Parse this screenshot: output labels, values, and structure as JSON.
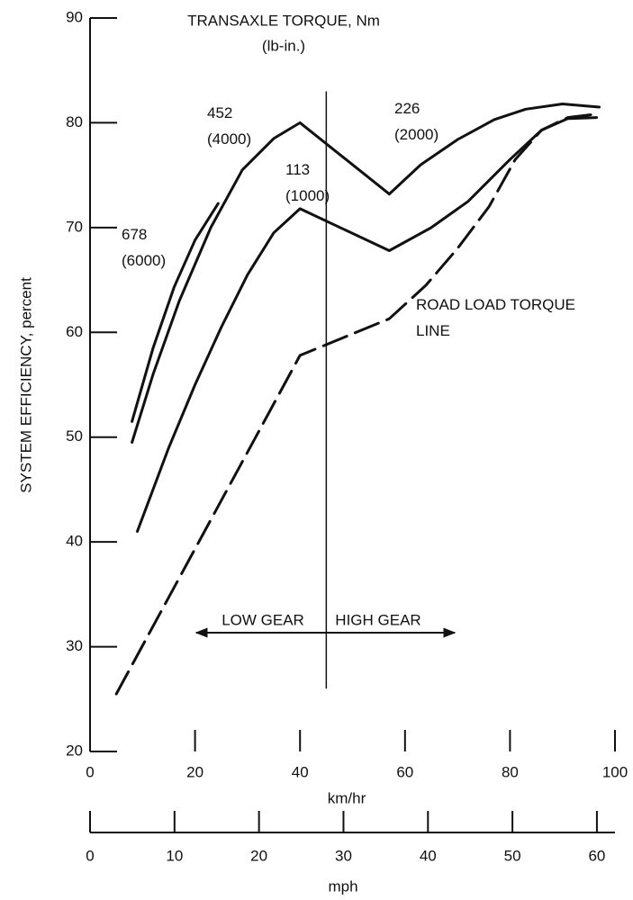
{
  "chart_data": {
    "type": "line",
    "title": "TRANSAXLE TORQUE, Nm",
    "subtitle": "(lb-in.)",
    "ylabel": "SYSTEM EFFICIENCY, percent",
    "xlabel": "km/hr",
    "x2label": "mph",
    "xlim": [
      0,
      100
    ],
    "xticks": [
      0,
      20,
      40,
      60,
      80,
      100
    ],
    "x2lim": [
      0,
      62.14
    ],
    "x2ticks": [
      0,
      10,
      20,
      30,
      40,
      50,
      60
    ],
    "ylim": [
      20,
      90
    ],
    "yticks": [
      20,
      30,
      40,
      50,
      60,
      70,
      80,
      90
    ],
    "grid": false,
    "gear_shift": {
      "x": 45,
      "y": [
        26,
        83
      ]
    },
    "annotations": {
      "low": "LOW GEAR",
      "high": "HIGH GEAR"
    },
    "series": [
      {
        "name": "678 (6000)",
        "color": "#111",
        "style": "solid",
        "x": [
          8,
          12,
          16,
          20,
          24.4
        ],
        "values": [
          51.5,
          58.5,
          64.3,
          68.8,
          72.3
        ]
      },
      {
        "name": "452 (4000)",
        "color": "#111",
        "style": "solid",
        "x": [
          8,
          12,
          17,
          23,
          29,
          35,
          40,
          57
        ],
        "values": [
          49.5,
          56,
          63,
          70,
          75.5,
          78.5,
          80,
          73.2
        ]
      },
      {
        "name": "226 (2000)",
        "color": "#111",
        "style": "solid",
        "x": [
          57,
          63,
          70,
          77,
          83,
          90,
          97
        ],
        "values": [
          73.2,
          76,
          78.4,
          80.3,
          81.3,
          81.8,
          81.5
        ]
      },
      {
        "name": "113 (1000)",
        "color": "#111",
        "style": "solid",
        "x": [
          9,
          15,
          20,
          25,
          30,
          35,
          40,
          57,
          65,
          72,
          80,
          86,
          91,
          96.5
        ],
        "values": [
          41,
          49,
          55,
          60.5,
          65.5,
          69.5,
          71.8,
          67.8,
          70,
          72.5,
          76.5,
          79.3,
          80.4,
          80.5
        ]
      },
      {
        "name": "ROAD LOAD TORQUE LINE",
        "color": "#111",
        "style": "dashed",
        "x": [
          5,
          40,
          57,
          64,
          70,
          76,
          81,
          86,
          91,
          96
        ],
        "values": [
          25.5,
          57.8,
          61.3,
          64.5,
          68,
          72,
          76.5,
          79.3,
          80.5,
          80.8
        ]
      }
    ]
  }
}
